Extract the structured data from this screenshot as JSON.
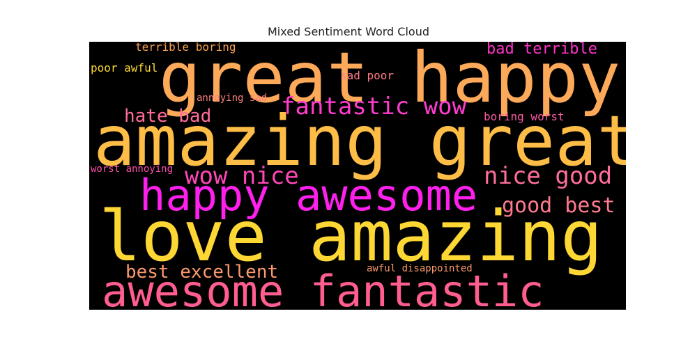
{
  "title": "Mixed Sentiment Word Cloud",
  "chart_data": {
    "type": "wordcloud",
    "title": "Mixed Sentiment Word Cloud",
    "background": "#000000",
    "words": [
      {
        "text": "great happy",
        "color": "#fca95a"
      },
      {
        "text": "amazing great",
        "color": "#fdbd46"
      },
      {
        "text": "love amazing",
        "color": "#fdd734"
      },
      {
        "text": "happy awesome",
        "color": "#ff20ee"
      },
      {
        "text": "awesome fantastic",
        "color": "#ff5e8f"
      },
      {
        "text": "fantastic wow",
        "color": "#ff3ccf"
      },
      {
        "text": "wow nice",
        "color": "#ff47b8"
      },
      {
        "text": "nice good",
        "color": "#ff6e99"
      },
      {
        "text": "good best",
        "color": "#ff7a8e"
      },
      {
        "text": "best excellent",
        "color": "#fd9a6c"
      },
      {
        "text": "hate bad",
        "color": "#ff6e99"
      },
      {
        "text": "bad terrible",
        "color": "#ff33c8"
      },
      {
        "text": "terrible boring",
        "color": "#fda350"
      },
      {
        "text": "poor awful",
        "color": "#fdd734"
      },
      {
        "text": "sad poor",
        "color": "#ff7d85"
      },
      {
        "text": "annoying sad",
        "color": "#ff8080"
      },
      {
        "text": "boring worst",
        "color": "#ff5aa5"
      },
      {
        "text": "worst annoying",
        "color": "#ff4fb0"
      },
      {
        "text": "awful disappointed",
        "color": "#fd9a6c"
      }
    ]
  }
}
